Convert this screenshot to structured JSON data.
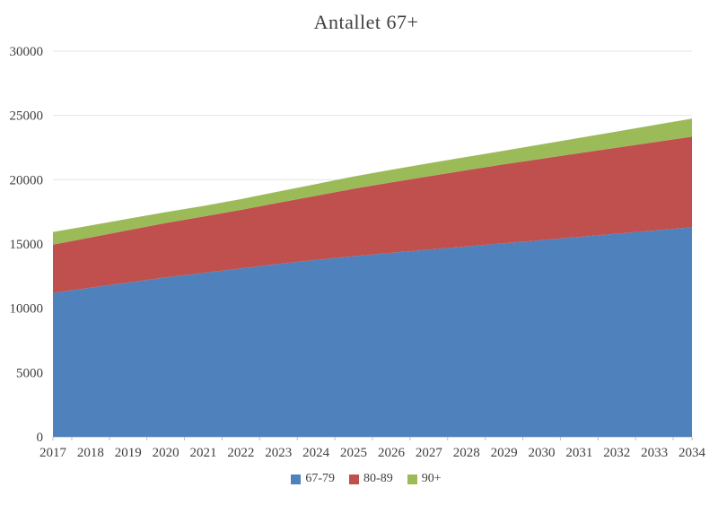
{
  "chart_data": {
    "type": "area",
    "stacked": true,
    "title": "Antallet 67+",
    "categories": [
      "2017",
      "2018",
      "2019",
      "2020",
      "2021",
      "2022",
      "2023",
      "2024",
      "2025",
      "2026",
      "2027",
      "2028",
      "2029",
      "2030",
      "2031",
      "2032",
      "2033",
      "2034"
    ],
    "series": [
      {
        "name": "67-79",
        "color": "#4F81BD",
        "values": [
          11200,
          11600,
          12000,
          12400,
          12750,
          13100,
          13450,
          13760,
          14050,
          14310,
          14560,
          14810,
          15050,
          15300,
          15550,
          15800,
          16050,
          16300
        ]
      },
      {
        "name": "80-89",
        "color": "#C0504D",
        "values": [
          3750,
          3910,
          4070,
          4230,
          4390,
          4550,
          4760,
          4990,
          5250,
          5480,
          5710,
          5930,
          6150,
          6330,
          6510,
          6690,
          6870,
          7050
        ]
      },
      {
        "name": "90+",
        "color": "#9BBB59",
        "values": [
          980,
          930,
          890,
          850,
          820,
          840,
          870,
          910,
          950,
          980,
          1010,
          1030,
          1060,
          1120,
          1190,
          1260,
          1330,
          1400
        ]
      }
    ],
    "xlabel": "",
    "ylabel": "",
    "ylim": [
      0,
      30000
    ],
    "ytick_interval": 5000,
    "ytick_labels": [
      "0",
      "5000",
      "10000",
      "15000",
      "20000",
      "25000",
      "30000"
    ],
    "grid": true,
    "legend_position": "bottom",
    "colors": {
      "gridline": "#E6E6E6",
      "axis_line": "#D9D9D9",
      "tick": "#BFBFBF",
      "text": "#404040"
    }
  }
}
